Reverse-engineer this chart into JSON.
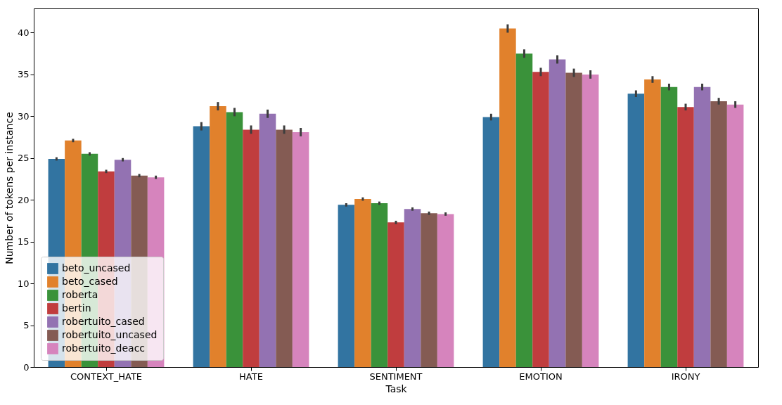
{
  "chart_data": {
    "type": "bar",
    "xlabel": "Task",
    "ylabel": "Number of tokens per instance",
    "categories": [
      "CONTEXT_HATE",
      "HATE",
      "SENTIMENT",
      "EMOTION",
      "IRONY"
    ],
    "series": [
      {
        "name": "beto_uncased",
        "color": "#3274a1",
        "values": [
          24.9,
          28.8,
          19.4,
          29.9,
          32.7
        ],
        "errors": [
          0.2,
          0.5,
          0.2,
          0.4,
          0.4
        ]
      },
      {
        "name": "beto_cased",
        "color": "#e1812c",
        "values": [
          27.1,
          31.2,
          20.1,
          40.5,
          34.4
        ],
        "errors": [
          0.2,
          0.5,
          0.2,
          0.5,
          0.4
        ]
      },
      {
        "name": "roberta",
        "color": "#3a923a",
        "values": [
          25.5,
          30.5,
          19.6,
          37.5,
          33.5
        ],
        "errors": [
          0.2,
          0.5,
          0.2,
          0.5,
          0.4
        ]
      },
      {
        "name": "bertin",
        "color": "#c03d3e",
        "values": [
          23.4,
          28.4,
          17.3,
          35.3,
          31.1
        ],
        "errors": [
          0.2,
          0.5,
          0.2,
          0.5,
          0.4
        ]
      },
      {
        "name": "robertuito_cased",
        "color": "#9372b2",
        "values": [
          24.8,
          30.3,
          18.9,
          36.8,
          33.5
        ],
        "errors": [
          0.2,
          0.5,
          0.2,
          0.5,
          0.4
        ]
      },
      {
        "name": "robertuito_uncased",
        "color": "#845b53",
        "values": [
          22.9,
          28.4,
          18.4,
          35.2,
          31.8
        ],
        "errors": [
          0.2,
          0.5,
          0.2,
          0.5,
          0.4
        ]
      },
      {
        "name": "robertuito_deacc",
        "color": "#d684bd",
        "values": [
          22.7,
          28.1,
          18.3,
          35.0,
          31.4
        ],
        "errors": [
          0.2,
          0.5,
          0.2,
          0.5,
          0.4
        ]
      }
    ],
    "ylim": [
      0,
      42.9
    ],
    "yticks": [
      0,
      5,
      10,
      15,
      20,
      25,
      30,
      35,
      40
    ],
    "grid": false,
    "legend": "bottom left"
  }
}
